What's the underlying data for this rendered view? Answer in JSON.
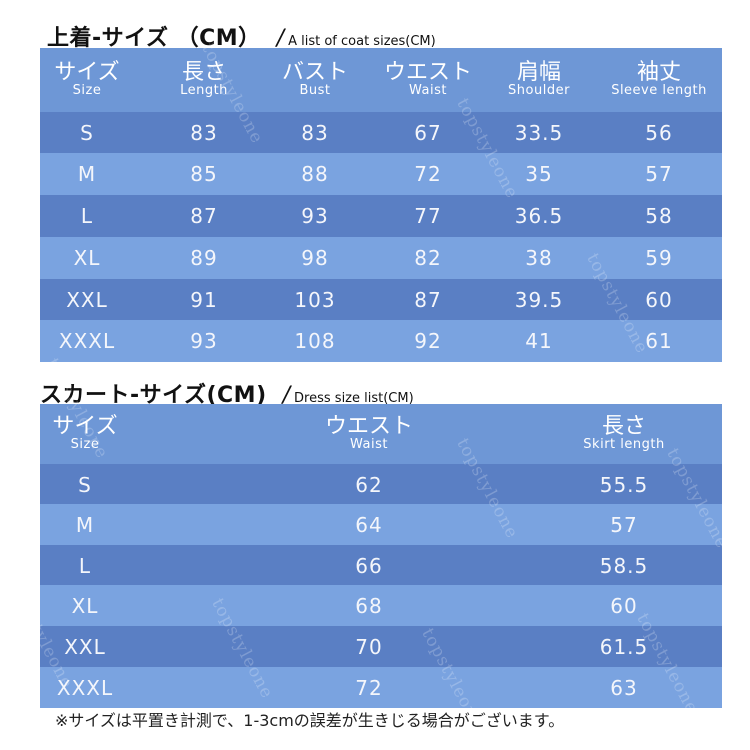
{
  "coat": {
    "title": "上着-サイズ （CM）",
    "slash": "/",
    "subtitle": "A list of coat sizes(CM)",
    "headers": [
      {
        "jp": "サイズ",
        "en": "Size"
      },
      {
        "jp": "長さ",
        "en": "Length"
      },
      {
        "jp": "バスト",
        "en": "Bust"
      },
      {
        "jp": "ウエスト",
        "en": "Waist"
      },
      {
        "jp": "肩幅",
        "en": "Shoulder"
      },
      {
        "jp": "袖丈",
        "en": "Sleeve length"
      }
    ],
    "rows": [
      [
        "S",
        "83",
        "83",
        "67",
        "33.5",
        "56"
      ],
      [
        "M",
        "85",
        "88",
        "72",
        "35",
        "57"
      ],
      [
        "L",
        "87",
        "93",
        "77",
        "36.5",
        "58"
      ],
      [
        "XL",
        "89",
        "98",
        "82",
        "38",
        "59"
      ],
      [
        "XXL",
        "91",
        "103",
        "87",
        "39.5",
        "60"
      ],
      [
        "XXXL",
        "93",
        "108",
        "92",
        "41",
        "61"
      ]
    ]
  },
  "skirt": {
    "title": "スカート-サイズ(CM)",
    "slash": "/",
    "subtitle": "Dress size list(CM)",
    "headers": [
      {
        "jp": "サイズ",
        "en": "Size"
      },
      {
        "jp": "ウエスト",
        "en": "Waist"
      },
      {
        "jp": "長さ",
        "en": "Skirt length"
      }
    ],
    "rows": [
      [
        "S",
        "62",
        "55.5"
      ],
      [
        "M",
        "64",
        "57"
      ],
      [
        "L",
        "66",
        "58.5"
      ],
      [
        "XL",
        "68",
        "60"
      ],
      [
        "XXL",
        "70",
        "61.5"
      ],
      [
        "XXXL",
        "72",
        "63"
      ]
    ]
  },
  "note": "※サイズは平置き計測で、1-3cmの誤差が生きじる場合がございます。",
  "watermark": "topstyleone",
  "colors": {
    "table_bg": "#6b92cf",
    "row_dark": "#5a7fc4",
    "row_light": "#7aa3e0",
    "header_bg": "#6e97d6",
    "text_white": "#ffffff"
  }
}
